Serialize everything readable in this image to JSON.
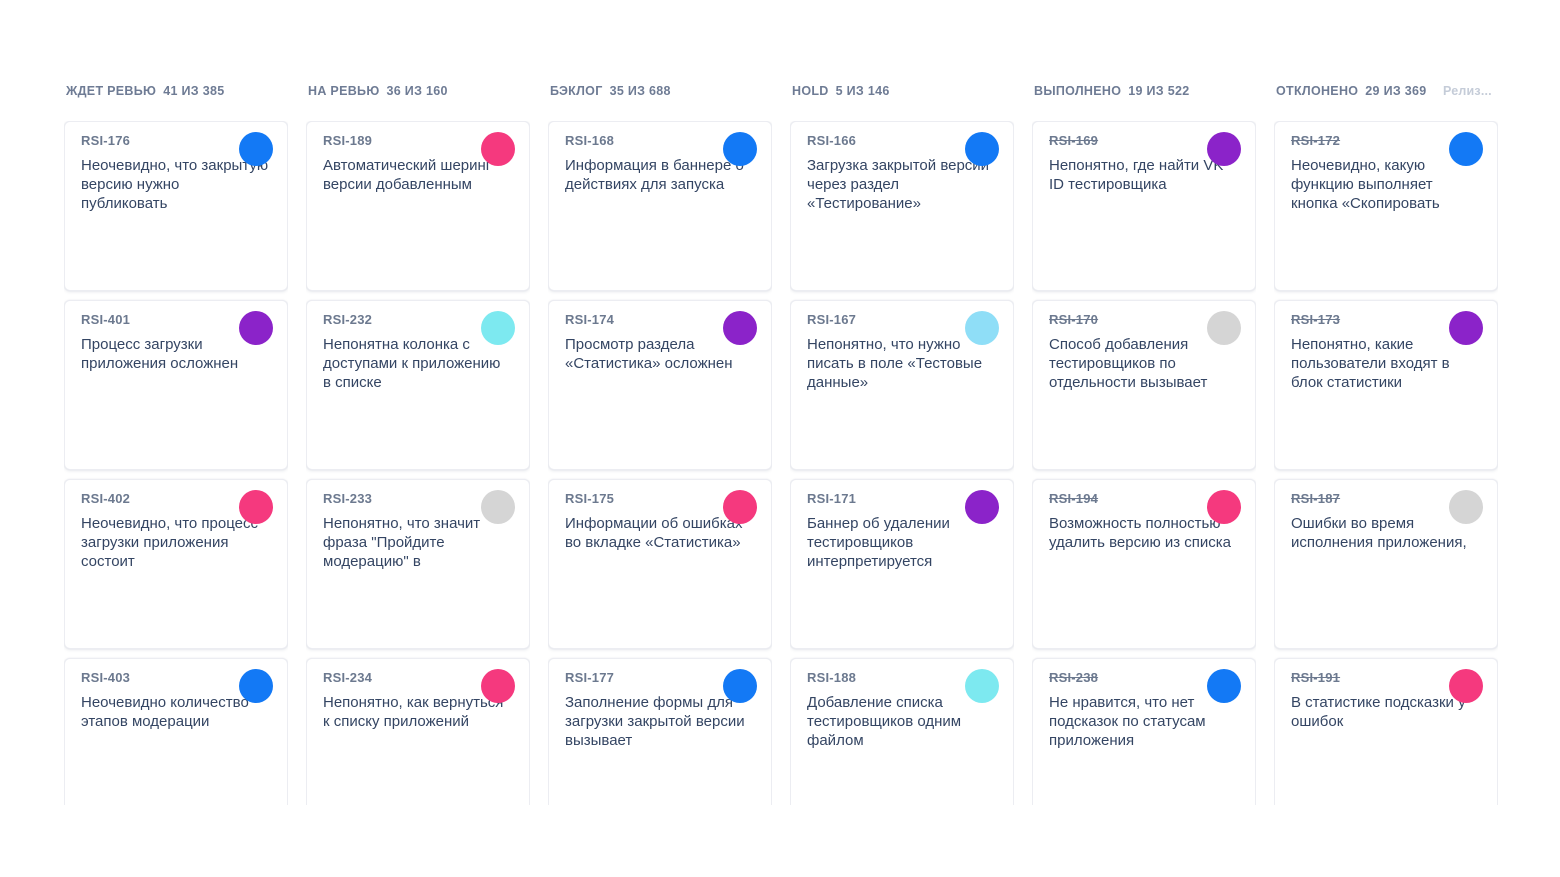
{
  "palette": {
    "blue": "#1379F5",
    "purple": "#8B23C9",
    "pink": "#F5397E",
    "cyan": "#7DE9F0",
    "light_cyan": "#8FDEF7",
    "gray": "#D5D5D5"
  },
  "release_label": "Релиз...",
  "board": {
    "columns": [
      {
        "title": "ЖДЕТ РЕВЬЮ",
        "count": "41 ИЗ 385",
        "cards": [
          {
            "id": "RSI-176",
            "text": "Неочевидно, что закрытую версию нужно публиковать",
            "avatar_color": "#1379F5",
            "struck": false
          },
          {
            "id": "RSI-401",
            "text": "Процесс загрузки приложения осложнен",
            "avatar_color": "#8B23C9",
            "struck": false
          },
          {
            "id": "RSI-402",
            "text": "Неочевидно, что процесс загрузки приложения состоит",
            "avatar_color": "#F5397E",
            "struck": false
          },
          {
            "id": "RSI-403",
            "text": "Неочевидно количество этапов модерации",
            "avatar_color": "#1379F5",
            "struck": false
          }
        ]
      },
      {
        "title": "НА РЕВЬЮ",
        "count": "36 ИЗ 160",
        "cards": [
          {
            "id": "RSI-189",
            "text": "Автоматический шеринг версии добавленным",
            "avatar_color": "#F5397E",
            "struck": false
          },
          {
            "id": "RSI-232",
            "text": "Непонятна колонка с доступами к приложению в списке",
            "avatar_color": "#7DE9F0",
            "struck": false
          },
          {
            "id": "RSI-233",
            "text": "Непонятно, что значит фраза \"Пройдите модерацию\" в",
            "avatar_color": "#D5D5D5",
            "struck": false
          },
          {
            "id": "RSI-234",
            "text": "Непонятно, как вернуться к списку приложений",
            "avatar_color": "#F5397E",
            "struck": false
          }
        ]
      },
      {
        "title": "БЭКЛОГ",
        "count": "35 ИЗ 688",
        "cards": [
          {
            "id": "RSI-168",
            "text": "Информация в баннере о действиях для запуска",
            "avatar_color": "#1379F5",
            "struck": false
          },
          {
            "id": "RSI-174",
            "text": "Просмотр раздела «Статистика» осложнен",
            "avatar_color": "#8B23C9",
            "struck": false
          },
          {
            "id": "RSI-175",
            "text": "Информации об ошибках во вкладке «Статистика»",
            "avatar_color": "#F5397E",
            "struck": false
          },
          {
            "id": "RSI-177",
            "text": "Заполнение формы для загрузки закрытой версии вызывает",
            "avatar_color": "#1379F5",
            "struck": false
          }
        ]
      },
      {
        "title": "HOLD",
        "count": "5 ИЗ 146",
        "cards": [
          {
            "id": "RSI-166",
            "text": "Загрузка закрытой версии через раздел «Тестирование»",
            "avatar_color": "#1379F5",
            "struck": false
          },
          {
            "id": "RSI-167",
            "text": "Непонятно, что нужно писать в поле «Тестовые данные»",
            "avatar_color": "#8FDEF7",
            "struck": false
          },
          {
            "id": "RSI-171",
            "text": "Баннер об удалении тестировщиков интерпретируется",
            "avatar_color": "#8B23C9",
            "struck": false
          },
          {
            "id": "RSI-188",
            "text": "Добавление списка тестировщиков одним файлом",
            "avatar_color": "#7DE9F0",
            "struck": false
          }
        ]
      },
      {
        "title": "ВЫПОЛНЕНО",
        "count": "19 ИЗ 522",
        "cards": [
          {
            "id": "RSI-169",
            "text": "Непонятно, где найти VK ID тестировщика",
            "avatar_color": "#8B23C9",
            "struck": true
          },
          {
            "id": "RSI-170",
            "text": "Способ добавления тестировщиков по отдельности вызывает",
            "avatar_color": "#D5D5D5",
            "struck": true
          },
          {
            "id": "RSI-194",
            "text": "Возможность полностью удалить версию из списка",
            "avatar_color": "#F5397E",
            "struck": true
          },
          {
            "id": "RSI-238",
            "text": "Не нравится, что нет подсказок по статусам приложения",
            "avatar_color": "#1379F5",
            "struck": true
          }
        ]
      },
      {
        "title": "ОТКЛОНЕНО",
        "count": "29 ИЗ 369",
        "cards": [
          {
            "id": "RSI-172",
            "text": "Неочевидно, какую функцию выполняет кнопка «Скопировать",
            "avatar_color": "#1379F5",
            "struck": true
          },
          {
            "id": "RSI-173",
            "text": "Непонятно, какие пользователи входят в блок статистики",
            "avatar_color": "#8B23C9",
            "struck": true
          },
          {
            "id": "RSI-187",
            "text": "Ошибки во время исполнения приложения,",
            "avatar_color": "#D5D5D5",
            "struck": true
          },
          {
            "id": "RSI-191",
            "text": "В статистике подсказки у ошибок",
            "avatar_color": "#F5397E",
            "struck": true
          }
        ]
      }
    ]
  }
}
